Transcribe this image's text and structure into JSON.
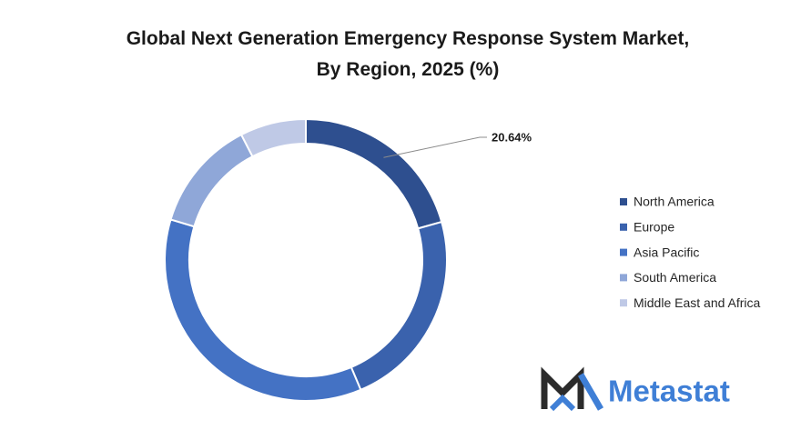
{
  "chart_data": {
    "type": "donut",
    "title": "Global Next Generation Emergency Response System Market, By Region, 2025 (%)",
    "categories": [
      "North America",
      "Europe",
      "Asia Pacific",
      "South America",
      "Middle East and Africa"
    ],
    "values": [
      20.64,
      23.0,
      36.0,
      12.8,
      7.56
    ],
    "value_labels": [
      "20.64%",
      null,
      null,
      null,
      null
    ],
    "colors": [
      "#2e4f8f",
      "#3a62ad",
      "#4472c4",
      "#8fa7d8",
      "#bfc9e6"
    ],
    "legend": "right"
  },
  "logo": {
    "text": "Metastat"
  }
}
